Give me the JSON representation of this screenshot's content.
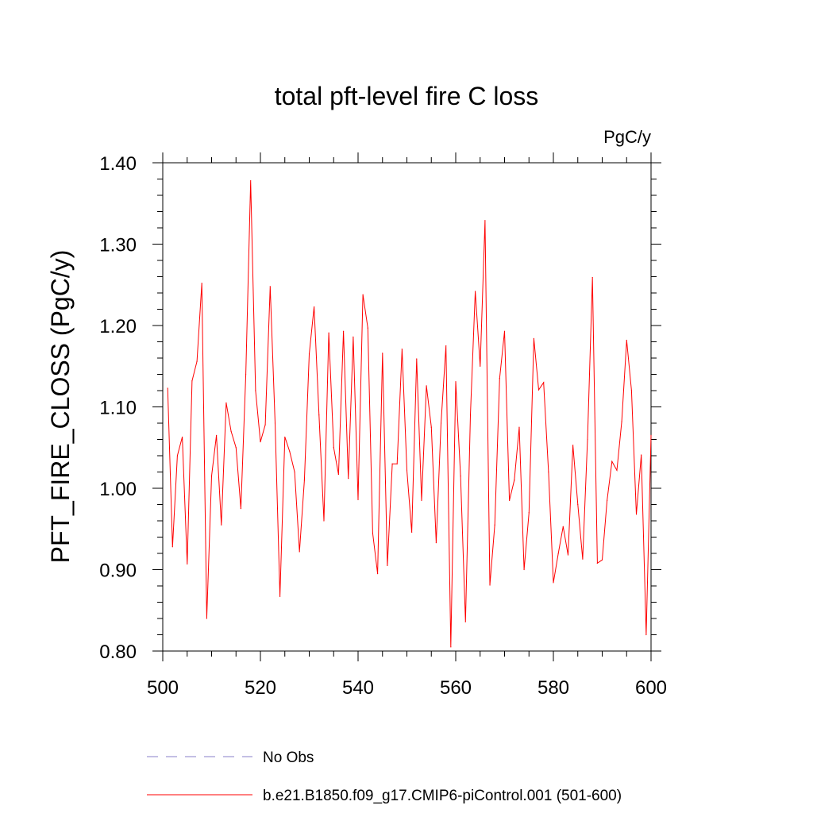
{
  "chart_data": {
    "type": "line",
    "title": "total pft-level fire C loss",
    "units_label": "PgC/y",
    "ylabel": "PFT_FIRE_CLOSS  (PgC/y)",
    "xlabel": "",
    "xlim": [
      500,
      600
    ],
    "ylim": [
      0.8,
      1.4
    ],
    "x_ticks": [
      500,
      520,
      540,
      560,
      580,
      600
    ],
    "x_tick_labels": [
      "500",
      "520",
      "540",
      "560",
      "580",
      "600"
    ],
    "y_ticks": [
      0.8,
      0.9,
      1.0,
      1.1,
      1.2,
      1.3,
      1.4
    ],
    "y_tick_labels": [
      "0.80",
      "0.90",
      "1.00",
      "1.10",
      "1.20",
      "1.30",
      "1.40"
    ],
    "grid": false,
    "legend_position": "bottom",
    "legend": [
      {
        "label": "No Obs",
        "color": "#8a7fc8",
        "style": "dashed"
      },
      {
        "label": "b.e21.B1850.f09_g17.CMIP6-piControl.001 (501-600)",
        "color": "#ff0000",
        "style": "solid"
      }
    ],
    "series": [
      {
        "name": "b.e21.B1850.f09_g17.CMIP6-piControl.001 (501-600)",
        "color": "#ff0000",
        "x": [
          501,
          502,
          503,
          504,
          505,
          506,
          507,
          508,
          509,
          510,
          511,
          512,
          513,
          514,
          515,
          516,
          517,
          518,
          519,
          520,
          521,
          522,
          523,
          524,
          525,
          526,
          527,
          528,
          529,
          530,
          531,
          532,
          533,
          534,
          535,
          536,
          537,
          538,
          539,
          540,
          541,
          542,
          543,
          544,
          545,
          546,
          547,
          548,
          549,
          550,
          551,
          552,
          553,
          554,
          555,
          556,
          557,
          558,
          559,
          560,
          561,
          562,
          563,
          564,
          565,
          566,
          567,
          568,
          569,
          570,
          571,
          572,
          573,
          574,
          575,
          576,
          577,
          578,
          579,
          580,
          581,
          582,
          583,
          584,
          585,
          586,
          587,
          588,
          589,
          590,
          591,
          592,
          593,
          594,
          595,
          596,
          597,
          598,
          599,
          600
        ],
        "y": [
          1.123,
          0.928,
          1.04,
          1.063,
          0.907,
          1.132,
          1.156,
          1.252,
          0.84,
          1.015,
          1.065,
          0.955,
          1.105,
          1.07,
          1.05,
          0.975,
          1.14,
          1.378,
          1.12,
          1.057,
          1.078,
          1.248,
          1.08,
          0.867,
          1.063,
          1.045,
          1.02,
          0.922,
          1.01,
          1.165,
          1.223,
          1.09,
          0.96,
          1.191,
          1.05,
          1.017,
          1.193,
          1.012,
          1.186,
          0.986,
          1.238,
          1.197,
          0.945,
          0.895,
          1.166,
          0.905,
          1.03,
          1.03,
          1.171,
          1.022,
          0.946,
          1.159,
          0.985,
          1.126,
          1.075,
          0.933,
          1.08,
          1.175,
          0.805,
          1.131,
          1.015,
          0.836,
          1.09,
          1.242,
          1.15,
          1.329,
          0.881,
          0.955,
          1.135,
          1.193,
          0.985,
          1.01,
          1.075,
          0.9,
          0.97,
          1.184,
          1.121,
          1.13,
          1.02,
          0.884,
          0.92,
          0.953,
          0.918,
          1.053,
          0.98,
          0.913,
          1.06,
          1.259,
          0.908,
          0.912,
          0.985,
          1.033,
          1.022,
          1.082,
          1.182,
          1.12,
          0.968,
          1.041,
          0.82,
          1.065
        ]
      }
    ]
  }
}
